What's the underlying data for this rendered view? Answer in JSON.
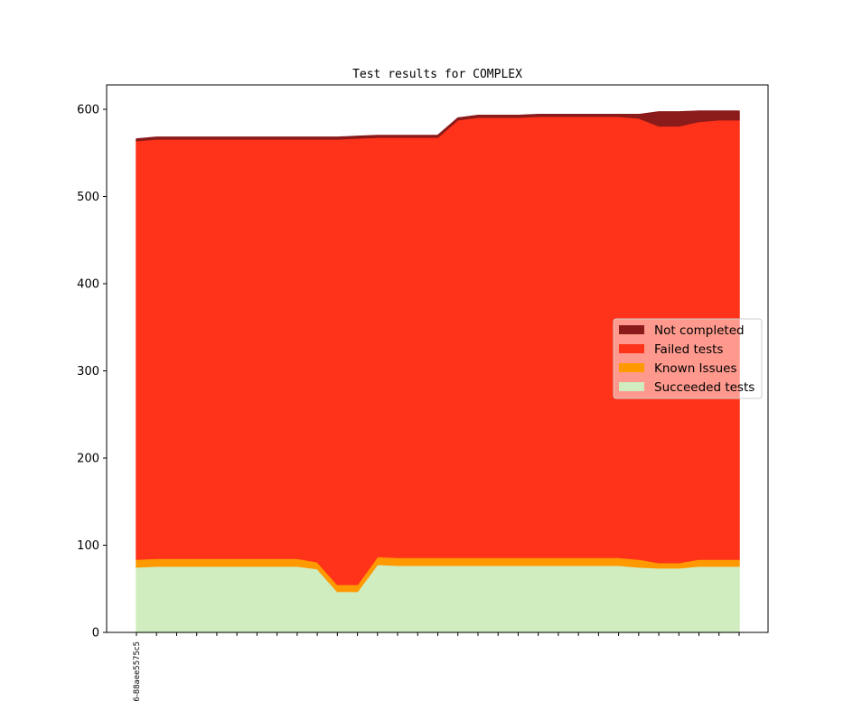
{
  "chart_data": {
    "type": "area",
    "stacked": true,
    "title": "Test results for COMPLEX",
    "xlabel": "",
    "ylabel": "",
    "ylim": [
      0,
      628
    ],
    "y_ticks": [
      0,
      100,
      200,
      300,
      400,
      500,
      600
    ],
    "x_tick_labels": [
      "6-88aee5575c5"
    ],
    "legend_position": "center-right",
    "grid": false,
    "series": [
      {
        "name": "Succeeded tests",
        "color": "#d0edc0",
        "values": [
          75,
          76,
          76,
          76,
          76,
          76,
          76,
          76,
          76,
          73,
          47,
          47,
          78,
          77,
          77,
          77,
          77,
          77,
          77,
          77,
          77,
          77,
          77,
          77,
          77,
          75,
          74,
          74,
          76,
          76,
          76
        ]
      },
      {
        "name": "Known Issues",
        "color": "#ff9900",
        "values": [
          9,
          9,
          9,
          9,
          9,
          9,
          9,
          9,
          9,
          8,
          8,
          8,
          9,
          9,
          9,
          9,
          9,
          9,
          9,
          9,
          9,
          9,
          9,
          9,
          9,
          9,
          6,
          6,
          8,
          8,
          8
        ]
      },
      {
        "name": "Failed tests",
        "color": "#ff321a",
        "values": [
          480,
          481,
          481,
          481,
          481,
          481,
          481,
          481,
          481,
          485,
          511,
          512,
          481,
          482,
          482,
          482,
          502,
          505,
          505,
          505,
          506,
          506,
          506,
          506,
          506,
          506,
          501,
          501,
          502,
          504,
          504
        ]
      },
      {
        "name": "Not completed",
        "color": "#8b1a1a",
        "values": [
          2,
          2,
          2,
          2,
          2,
          2,
          2,
          2,
          2,
          2,
          2,
          2,
          2,
          2,
          2,
          2,
          2,
          2,
          2,
          2,
          2,
          2,
          2,
          2,
          2,
          4,
          16,
          16,
          12,
          10,
          10
        ]
      }
    ]
  }
}
